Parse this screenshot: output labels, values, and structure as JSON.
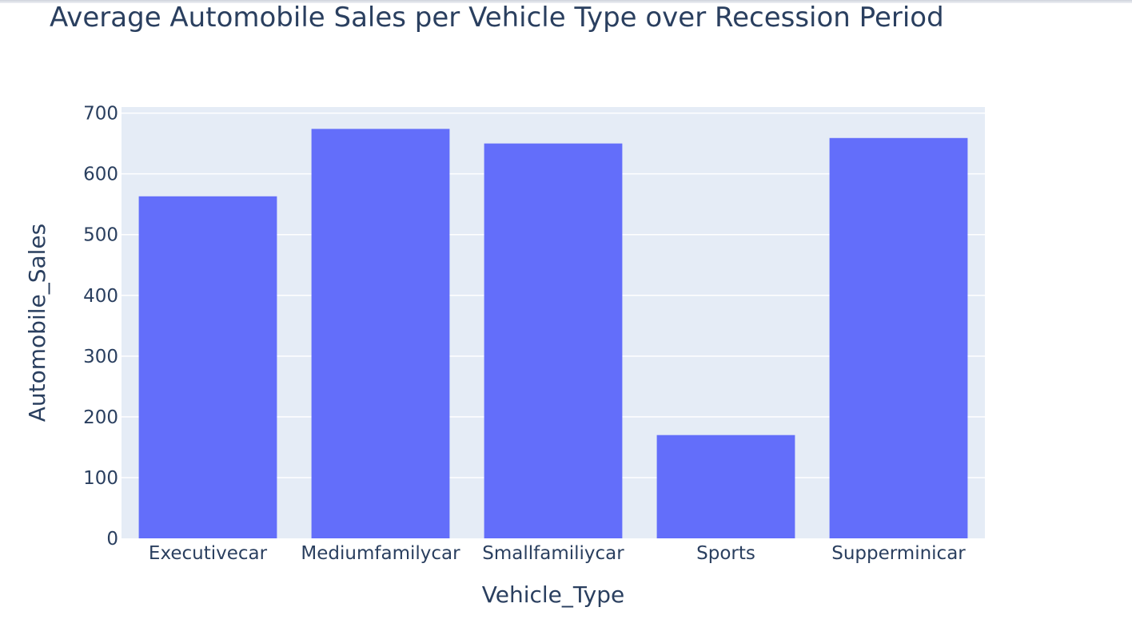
{
  "chart_data": {
    "type": "bar",
    "title": "Average Automobile Sales per Vehicle Type over Recession Period",
    "xlabel": "Vehicle_Type",
    "ylabel": "Automobile_Sales",
    "categories": [
      "Executivecar",
      "Mediumfamilycar",
      "Smallfamiliycar",
      "Sports",
      "Supperminicar"
    ],
    "values": [
      563,
      674,
      650,
      170,
      659
    ],
    "ylim": [
      0,
      710
    ],
    "yticks": [
      0,
      100,
      200,
      300,
      400,
      500,
      600,
      700
    ],
    "grid": true,
    "colors": {
      "bar": "#636efa",
      "plot_bg": "#e5ecf6",
      "grid": "#ffffff",
      "text": "#2a3f5f"
    }
  }
}
